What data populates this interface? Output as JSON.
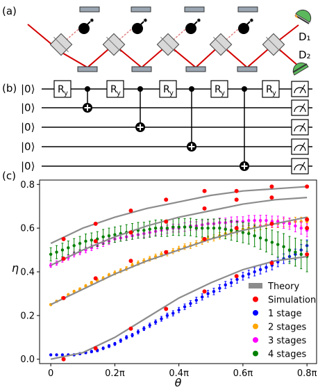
{
  "panels": {
    "a": "(a)",
    "b": "(b)",
    "c": "(c)"
  },
  "detectors": {
    "d1": "D₁",
    "d2": "D₂"
  },
  "circuit": {
    "ket": "|0⟩",
    "gate": "R",
    "gate_sub": "y"
  },
  "chart_data": {
    "type": "scatter",
    "title": "",
    "xlabel": "θ",
    "ylabel": "η",
    "xlim": [
      -0.035,
      0.83
    ],
    "ylim": [
      -0.02,
      0.82
    ],
    "x_unit": "π",
    "xticks": [
      0,
      0.2,
      0.4,
      0.6,
      0.8
    ],
    "xtick_labels": [
      "0",
      "0.2π",
      "0.4π",
      "0.6π",
      "0.8π"
    ],
    "yticks": [
      0.0,
      0.2,
      0.4,
      0.6,
      0.8
    ],
    "ytick_labels": [
      "0.0",
      "0.2",
      "0.4",
      "0.6",
      "0.8"
    ],
    "grid": false,
    "legend_position": "bottom-right",
    "legend": [
      "Theory",
      "Simulation",
      "1 stage",
      "2 stages",
      "3 stages",
      "4 stages"
    ],
    "colors": {
      "theory": "#8c8c8c",
      "simulation": "#ff0000",
      "stage1": "#0000ff",
      "stage2": "#ffa500",
      "stage3": "#ff00ff",
      "stage4": "#008000"
    },
    "theory_curves": [
      {
        "x": [
          0.0,
          0.1,
          0.2,
          0.3,
          0.4,
          0.5,
          0.6,
          0.7,
          0.8
        ],
        "y": [
          0.0,
          0.03,
          0.1,
          0.19,
          0.28,
          0.35,
          0.41,
          0.45,
          0.47
        ]
      },
      {
        "x": [
          0.0,
          0.1,
          0.2,
          0.3,
          0.4,
          0.5,
          0.6,
          0.7,
          0.8
        ],
        "y": [
          0.25,
          0.32,
          0.39,
          0.45,
          0.5,
          0.55,
          0.59,
          0.62,
          0.65
        ]
      },
      {
        "x": [
          0.0,
          0.1,
          0.2,
          0.3,
          0.4,
          0.5,
          0.6,
          0.7,
          0.8
        ],
        "y": [
          0.43,
          0.5,
          0.56,
          0.61,
          0.65,
          0.68,
          0.71,
          0.73,
          0.74
        ]
      },
      {
        "x": [
          0.0,
          0.1,
          0.2,
          0.3,
          0.4,
          0.5,
          0.6,
          0.7,
          0.8
        ],
        "y": [
          0.53,
          0.6,
          0.65,
          0.69,
          0.72,
          0.75,
          0.77,
          0.78,
          0.79
        ]
      }
    ],
    "simulation": {
      "x": [
        0.04,
        0.14,
        0.25,
        0.36,
        0.48,
        0.58,
        0.69,
        0.8,
        0.04,
        0.14,
        0.25,
        0.36,
        0.48,
        0.58,
        0.69,
        0.8,
        0.04,
        0.14,
        0.25,
        0.36,
        0.48,
        0.58,
        0.69,
        0.8,
        0.04,
        0.14,
        0.25,
        0.36,
        0.48,
        0.58,
        0.69,
        0.8
      ],
      "y": [
        0.0,
        0.05,
        0.14,
        0.23,
        0.31,
        0.38,
        0.44,
        0.48,
        0.28,
        0.37,
        0.45,
        0.49,
        0.55,
        0.6,
        0.62,
        0.64,
        0.46,
        0.54,
        0.58,
        0.63,
        0.69,
        0.73,
        0.74,
        0.6,
        0.55,
        0.62,
        0.68,
        0.73,
        0.77,
        0.77,
        0.79,
        0.79
      ]
    },
    "series": [
      {
        "name": "1 stage",
        "x0": 0.0,
        "x1": 0.8,
        "y": [
          0.02,
          0.02,
          0.02,
          0.02,
          0.02,
          0.025,
          0.03,
          0.035,
          0.04,
          0.05,
          0.06,
          0.07,
          0.085,
          0.1,
          0.11,
          0.125,
          0.14,
          0.155,
          0.17,
          0.185,
          0.2,
          0.21,
          0.225,
          0.24,
          0.255,
          0.27,
          0.285,
          0.3,
          0.31,
          0.325,
          0.34,
          0.35,
          0.365,
          0.38,
          0.39,
          0.4,
          0.41,
          0.42,
          0.43,
          0.445,
          0.46,
          0.47,
          0.48,
          0.5,
          0.52
        ],
        "err": [
          0.004,
          0.004,
          0.004,
          0.004,
          0.005,
          0.005,
          0.005,
          0.006,
          0.006,
          0.006,
          0.007,
          0.007,
          0.008,
          0.008,
          0.008,
          0.009,
          0.009,
          0.01,
          0.01,
          0.011,
          0.011,
          0.012,
          0.012,
          0.013,
          0.013,
          0.014,
          0.014,
          0.015,
          0.015,
          0.016,
          0.016,
          0.017,
          0.017,
          0.018,
          0.018,
          0.019,
          0.02,
          0.02,
          0.021,
          0.022,
          0.022,
          0.023,
          0.024,
          0.025,
          0.026
        ]
      },
      {
        "name": "2 stages",
        "x0": 0.0,
        "x1": 0.8,
        "y": [
          0.25,
          0.265,
          0.28,
          0.295,
          0.31,
          0.32,
          0.335,
          0.35,
          0.36,
          0.37,
          0.385,
          0.395,
          0.405,
          0.415,
          0.43,
          0.44,
          0.45,
          0.46,
          0.47,
          0.48,
          0.485,
          0.495,
          0.505,
          0.515,
          0.52,
          0.53,
          0.54,
          0.55,
          0.555,
          0.565,
          0.575,
          0.58,
          0.59,
          0.595,
          0.6,
          0.605,
          0.61,
          0.615,
          0.62,
          0.62,
          0.625,
          0.625,
          0.63,
          0.63,
          0.63
        ],
        "err": [
          0.005,
          0.005,
          0.006,
          0.006,
          0.006,
          0.007,
          0.007,
          0.007,
          0.008,
          0.008,
          0.008,
          0.009,
          0.009,
          0.009,
          0.01,
          0.01,
          0.01,
          0.011,
          0.011,
          0.011,
          0.012,
          0.012,
          0.012,
          0.013,
          0.013,
          0.013,
          0.014,
          0.014,
          0.014,
          0.015,
          0.015,
          0.015,
          0.016,
          0.016,
          0.016,
          0.017,
          0.017,
          0.017,
          0.018,
          0.018,
          0.019,
          0.019,
          0.02,
          0.02,
          0.021
        ]
      },
      {
        "name": "3 stages",
        "x0": 0.0,
        "x1": 0.8,
        "y": [
          0.43,
          0.44,
          0.455,
          0.465,
          0.48,
          0.49,
          0.5,
          0.51,
          0.52,
          0.53,
          0.54,
          0.55,
          0.555,
          0.56,
          0.565,
          0.57,
          0.575,
          0.58,
          0.585,
          0.59,
          0.595,
          0.6,
          0.6,
          0.605,
          0.61,
          0.61,
          0.615,
          0.62,
          0.62,
          0.625,
          0.625,
          0.63,
          0.63,
          0.63,
          0.635,
          0.635,
          0.635,
          0.635,
          0.63,
          0.63,
          0.625,
          0.62,
          0.61,
          0.6,
          0.59
        ],
        "err": [
          0.01,
          0.01,
          0.011,
          0.011,
          0.012,
          0.012,
          0.013,
          0.013,
          0.014,
          0.014,
          0.015,
          0.015,
          0.015,
          0.016,
          0.016,
          0.016,
          0.017,
          0.017,
          0.017,
          0.018,
          0.018,
          0.018,
          0.018,
          0.019,
          0.019,
          0.019,
          0.02,
          0.02,
          0.02,
          0.021,
          0.021,
          0.021,
          0.022,
          0.022,
          0.023,
          0.023,
          0.024,
          0.024,
          0.025,
          0.025,
          0.026,
          0.026,
          0.027,
          0.028,
          0.03
        ]
      },
      {
        "name": "4 stages",
        "x0": 0.0,
        "x1": 0.8,
        "y": [
          0.48,
          0.49,
          0.5,
          0.51,
          0.52,
          0.53,
          0.54,
          0.545,
          0.55,
          0.56,
          0.565,
          0.57,
          0.575,
          0.58,
          0.585,
          0.59,
          0.59,
          0.595,
          0.6,
          0.6,
          0.6,
          0.605,
          0.605,
          0.605,
          0.605,
          0.6,
          0.6,
          0.6,
          0.6,
          0.6,
          0.595,
          0.59,
          0.585,
          0.58,
          0.575,
          0.565,
          0.555,
          0.545,
          0.535,
          0.525,
          0.515,
          0.5,
          0.49,
          0.48,
          0.47
        ],
        "err": [
          0.03,
          0.03,
          0.031,
          0.031,
          0.032,
          0.032,
          0.033,
          0.033,
          0.034,
          0.034,
          0.035,
          0.035,
          0.035,
          0.036,
          0.036,
          0.036,
          0.037,
          0.037,
          0.037,
          0.038,
          0.038,
          0.038,
          0.039,
          0.039,
          0.04,
          0.04,
          0.041,
          0.041,
          0.042,
          0.043,
          0.044,
          0.045,
          0.046,
          0.047,
          0.048,
          0.05,
          0.052,
          0.054,
          0.056,
          0.058,
          0.06,
          0.062,
          0.064,
          0.066,
          0.07
        ]
      }
    ]
  }
}
